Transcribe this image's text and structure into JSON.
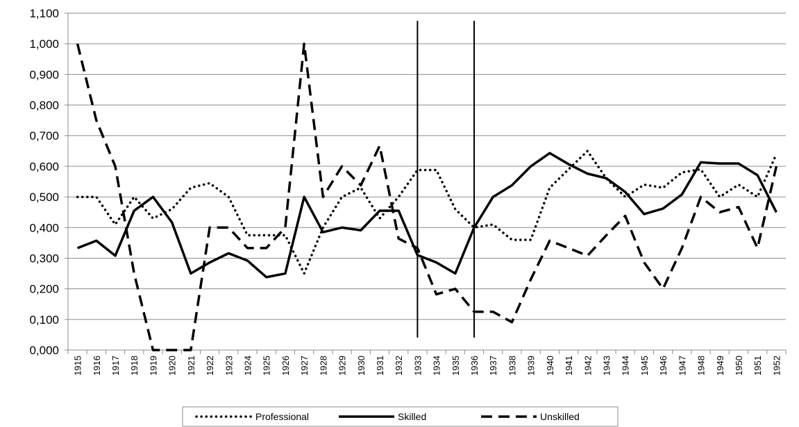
{
  "chart_data": {
    "type": "line",
    "categories": [
      "1915",
      "1916",
      "1917",
      "1918",
      "1919",
      "1920",
      "1921",
      "1922",
      "1923",
      "1924",
      "1925",
      "1926",
      "1927",
      "1928",
      "1929",
      "1930",
      "1931",
      "1932",
      "1933",
      "1934",
      "1935",
      "1936",
      "1937",
      "1938",
      "1939",
      "1940",
      "1941",
      "1942",
      "1943",
      "1944",
      "1945",
      "1946",
      "1947",
      "1948",
      "1949",
      "1950",
      "1951",
      "1952"
    ],
    "series": [
      {
        "name": "Professional",
        "color": "#000000",
        "dash": "dotted",
        "values": [
          0.5,
          0.5,
          0.41,
          0.5,
          0.43,
          0.46,
          0.53,
          0.545,
          0.5,
          0.375,
          0.375,
          0.375,
          0.25,
          0.4,
          0.5,
          0.53,
          0.43,
          0.5,
          0.588,
          0.588,
          0.46,
          0.4,
          0.41,
          0.36,
          0.36,
          0.53,
          0.59,
          0.65,
          0.56,
          0.5,
          0.54,
          0.53,
          0.58,
          0.59,
          0.5,
          0.54,
          0.5,
          0.64
        ]
      },
      {
        "name": "Skilled",
        "color": "#000000",
        "dash": "solid",
        "values": [
          0.333,
          0.357,
          0.308,
          0.455,
          0.5,
          0.417,
          0.25,
          0.286,
          0.316,
          0.292,
          0.238,
          0.25,
          0.5,
          0.385,
          0.4,
          0.391,
          0.455,
          0.455,
          0.31,
          0.286,
          0.25,
          0.4,
          0.5,
          0.538,
          0.6,
          0.643,
          0.607,
          0.576,
          0.561,
          0.516,
          0.444,
          0.462,
          0.508,
          0.613,
          0.609,
          0.609,
          0.571,
          0.45
        ]
      },
      {
        "name": "Unskilled",
        "color": "#000000",
        "dash": "dashed",
        "values": [
          1.0,
          0.75,
          0.6,
          0.25,
          0.0,
          0.0,
          0.0,
          0.4,
          0.4,
          0.333,
          0.333,
          0.4,
          1.0,
          0.5,
          0.6,
          0.538,
          0.667,
          0.364,
          0.333,
          0.182,
          0.2,
          0.125,
          0.125,
          0.091,
          0.231,
          0.357,
          0.333,
          0.308,
          0.375,
          0.438,
          0.286,
          0.2,
          0.333,
          0.5,
          0.45,
          0.467,
          0.333,
          0.6
        ]
      }
    ],
    "vertical_lines": [
      "1933",
      "1936"
    ],
    "ylim": [
      0,
      1.1
    ],
    "yticks": [
      {
        "value": 0,
        "label": "0,000"
      },
      {
        "value": 0.1,
        "label": "0,100"
      },
      {
        "value": 0.2,
        "label": "0,200"
      },
      {
        "value": 0.3,
        "label": "0,300"
      },
      {
        "value": 0.4,
        "label": "0,400"
      },
      {
        "value": 0.5,
        "label": "0,500"
      },
      {
        "value": 0.6,
        "label": "0,600"
      },
      {
        "value": 0.7,
        "label": "0,700"
      },
      {
        "value": 0.8,
        "label": "0,800"
      },
      {
        "value": 0.9,
        "label": "0,900"
      },
      {
        "value": 1.0,
        "label": "1,000"
      },
      {
        "value": 1.1,
        "label": "1,100"
      }
    ],
    "grid": true,
    "legend": "bottom"
  }
}
